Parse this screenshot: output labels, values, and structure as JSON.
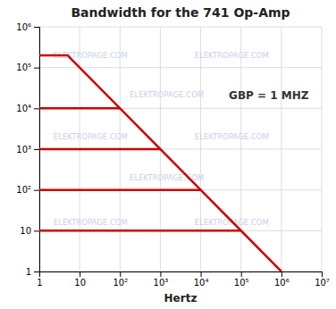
{
  "chart_data": {
    "type": "line",
    "title": "Bandwidth for the 741 Op-Amp",
    "xlabel": "Hertz",
    "log": true,
    "grid": true,
    "color": "#CC0000",
    "xlim": [
      1,
      10000000
    ],
    "ylim": [
      1,
      1000000
    ],
    "xticks": [
      1,
      10,
      {
        "value": 100,
        "label": "10²"
      },
      {
        "value": 1000,
        "label": "10³"
      },
      {
        "value": 10000,
        "label": "10⁴"
      },
      {
        "value": 100000,
        "label": "10⁵"
      },
      {
        "value": 1000000,
        "label": "10⁶"
      },
      {
        "value": 10000000,
        "label": "10⁷"
      }
    ],
    "yticks": [
      1,
      10,
      {
        "value": 100,
        "label": "10²"
      },
      {
        "value": 1000,
        "label": "10³"
      },
      {
        "value": 10000,
        "label": "10⁴"
      },
      {
        "value": 100000,
        "label": "10⁵"
      },
      {
        "value": 1000000,
        "label": "10⁶"
      }
    ],
    "series": [
      {
        "x": [
          1,
          5,
          1000000
        ],
        "values": [
          200000,
          200000,
          1
        ]
      },
      {
        "x": [
          1,
          100
        ],
        "values": [
          10000,
          10000
        ]
      },
      {
        "x": [
          1,
          1000
        ],
        "values": [
          1000,
          1000
        ]
      },
      {
        "x": [
          1,
          10000
        ],
        "values": [
          100,
          100
        ]
      },
      {
        "x": [
          1,
          100000
        ],
        "values": [
          10,
          10
        ]
      }
    ],
    "annotations": [
      {
        "text": "GBP = 1 MHZ",
        "x": 50000,
        "y": 20000
      }
    ],
    "watermark": "ELEKTROPAGE.COM"
  }
}
